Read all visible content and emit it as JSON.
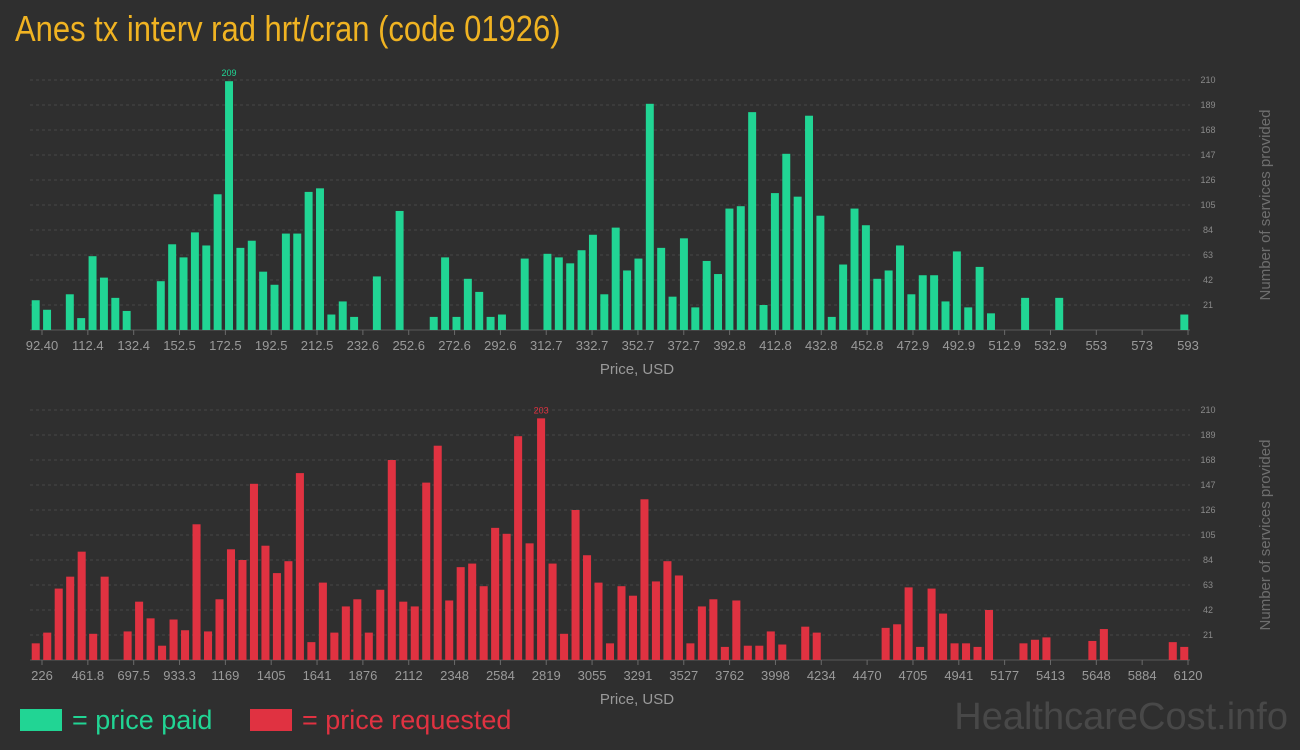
{
  "title": "Anes tx interv rad hrt/cran (code 01926)",
  "legend": {
    "paid": "= price paid",
    "requested": "= price requested"
  },
  "watermark": "HealthcareCost.info",
  "colors": {
    "paid": "#21d594",
    "requested": "#e03241",
    "title": "#f0b322",
    "background": "#2f2f2f"
  },
  "chart_data": [
    {
      "type": "bar",
      "name": "price paid",
      "xlabel": "Price, USD",
      "ylabel": "Number of services provided",
      "ylim": [
        0,
        210
      ],
      "yticks": [
        21,
        42,
        63,
        84,
        105,
        126,
        147,
        168,
        189,
        210
      ],
      "xticks": [
        "92.40",
        "112.4",
        "132.4",
        "152.5",
        "172.5",
        "192.5",
        "212.5",
        "232.6",
        "252.6",
        "272.6",
        "292.6",
        "312.7",
        "332.7",
        "352.7",
        "372.7",
        "392.8",
        "412.8",
        "432.8",
        "452.8",
        "472.9",
        "492.9",
        "512.9",
        "532.9",
        "553",
        "573",
        "593"
      ],
      "peak_label": "209",
      "values": [
        25,
        17,
        0,
        30,
        10,
        62,
        44,
        27,
        16,
        0,
        0,
        41,
        72,
        61,
        82,
        71,
        114,
        209,
        69,
        75,
        49,
        38,
        81,
        81,
        116,
        119,
        13,
        24,
        11,
        0,
        45,
        0,
        100,
        0,
        0,
        11,
        61,
        11,
        43,
        32,
        11,
        13,
        0,
        60,
        0,
        64,
        61,
        56,
        67,
        80,
        30,
        86,
        50,
        60,
        190,
        69,
        28,
        77,
        19,
        58,
        47,
        102,
        104,
        183,
        21,
        115,
        148,
        112,
        180,
        96,
        11,
        55,
        102,
        88,
        43,
        50,
        71,
        30,
        46,
        46,
        24,
        66,
        19,
        53,
        14,
        0,
        0,
        27,
        0,
        0,
        27,
        0,
        0,
        0,
        0,
        0,
        0,
        0,
        0,
        0,
        0,
        13
      ]
    },
    {
      "type": "bar",
      "name": "price requested",
      "xlabel": "Price, USD",
      "ylabel": "Number of services provided",
      "ylim": [
        0,
        210
      ],
      "yticks": [
        21,
        42,
        63,
        84,
        105,
        126,
        147,
        168,
        189,
        210
      ],
      "xticks": [
        "226",
        "461.8",
        "697.5",
        "933.3",
        "1169",
        "1405",
        "1641",
        "1876",
        "2112",
        "2348",
        "2584",
        "2819",
        "3055",
        "3291",
        "3527",
        "3762",
        "3998",
        "4234",
        "4470",
        "4705",
        "4941",
        "5177",
        "5413",
        "5648",
        "5884",
        "6120"
      ],
      "peak_label": "203",
      "values": [
        14,
        23,
        60,
        70,
        91,
        22,
        70,
        0,
        24,
        49,
        35,
        12,
        34,
        25,
        114,
        24,
        51,
        93,
        84,
        148,
        96,
        73,
        83,
        157,
        15,
        65,
        23,
        45,
        51,
        23,
        59,
        168,
        49,
        45,
        149,
        180,
        50,
        78,
        81,
        62,
        111,
        106,
        188,
        98,
        203,
        81,
        22,
        126,
        88,
        65,
        14,
        62,
        54,
        135,
        66,
        83,
        71,
        14,
        45,
        51,
        11,
        50,
        12,
        12,
        24,
        13,
        0,
        28,
        23,
        0,
        0,
        0,
        0,
        0,
        27,
        30,
        61,
        11,
        60,
        39,
        14,
        14,
        11,
        42,
        0,
        0,
        14,
        17,
        19,
        0,
        0,
        0,
        16,
        26,
        0,
        0,
        0,
        0,
        0,
        15,
        11
      ]
    }
  ]
}
